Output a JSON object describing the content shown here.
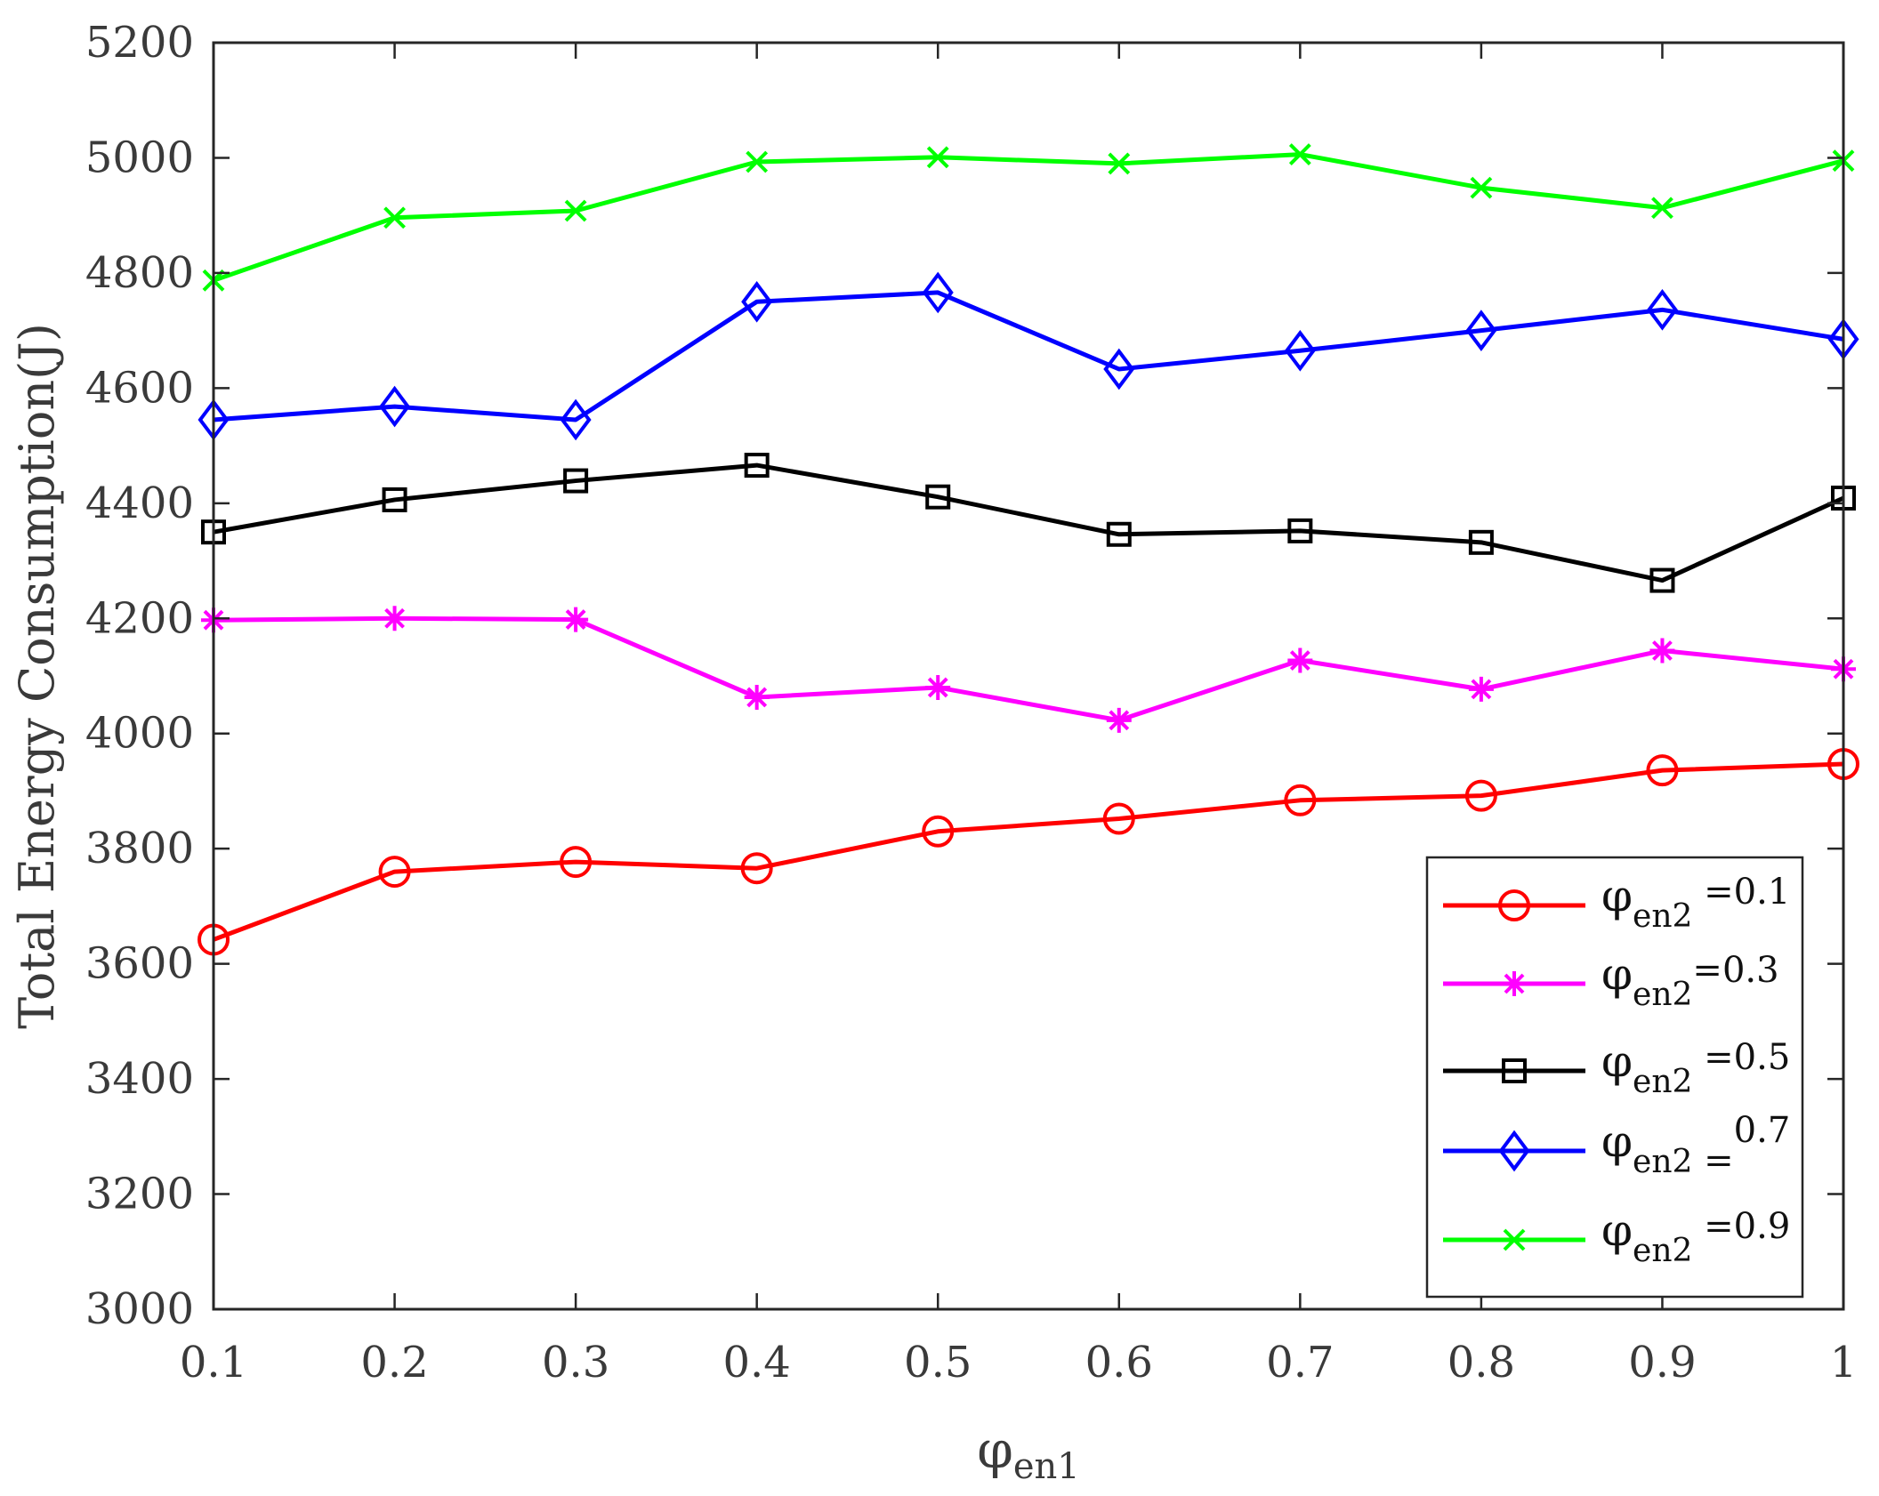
{
  "chart_data": {
    "type": "line",
    "x": [
      0.1,
      0.2,
      0.3,
      0.4,
      0.5,
      0.6,
      0.7,
      0.8,
      0.9,
      1.0
    ],
    "xtick_labels": [
      "0.1",
      "0.2",
      "0.3",
      "0.4",
      "0.5",
      "0.6",
      "0.7",
      "0.8",
      "0.9",
      "1"
    ],
    "ytick_values": [
      3000,
      3200,
      3400,
      3600,
      3800,
      4000,
      4200,
      4400,
      4600,
      4800,
      5000,
      5200
    ],
    "ytick_labels": [
      "3000",
      "3200",
      "3400",
      "3600",
      "3800",
      "4000",
      "4200",
      "4400",
      "4600",
      "4800",
      "5000",
      "5200"
    ],
    "xlim": [
      0.1,
      1.0
    ],
    "ylim": [
      3000,
      5200
    ],
    "xlabel": {
      "main": "φ",
      "sub": "en1"
    },
    "ylabel": "Total Energy Consumption(J)",
    "grid": false,
    "legend_position": "bottom-right",
    "series": [
      {
        "legend_main": "φ",
        "legend_sub": "en2",
        "legend_value": " =0.1",
        "color": "#ff0000",
        "marker": "circle",
        "values": [
          3642,
          3760,
          3777,
          3766,
          3830,
          3852,
          3884,
          3892,
          3936,
          3947
        ]
      },
      {
        "legend_main": "φ",
        "legend_sub": "en2",
        "legend_value": "=0.3",
        "color": "#ff00ff",
        "marker": "asterisk",
        "values": [
          4197,
          4200,
          4198,
          4063,
          4080,
          4023,
          4127,
          4077,
          4144,
          4112
        ]
      },
      {
        "legend_main": "φ",
        "legend_sub": "en2",
        "legend_value": " =0.5",
        "color": "#000000",
        "marker": "square",
        "values": [
          4350,
          4406,
          4439,
          4466,
          4411,
          4346,
          4352,
          4332,
          4266,
          4409
        ]
      },
      {
        "legend_main": "φ",
        "legend_sub": "en2",
        "legend_value": " =",
        "legend_sup": "0.7",
        "color": "#0000ff",
        "marker": "diamond",
        "values": [
          4545,
          4568,
          4545,
          4750,
          4766,
          4633,
          4665,
          4700,
          4736,
          4685
        ]
      },
      {
        "legend_main": "φ",
        "legend_sub": "en2",
        "legend_value": " =0.9",
        "color": "#00ff00",
        "marker": "x",
        "values": [
          4787,
          4896,
          4908,
          4993,
          5001,
          4990,
          5006,
          4948,
          4913,
          4995
        ]
      }
    ]
  }
}
